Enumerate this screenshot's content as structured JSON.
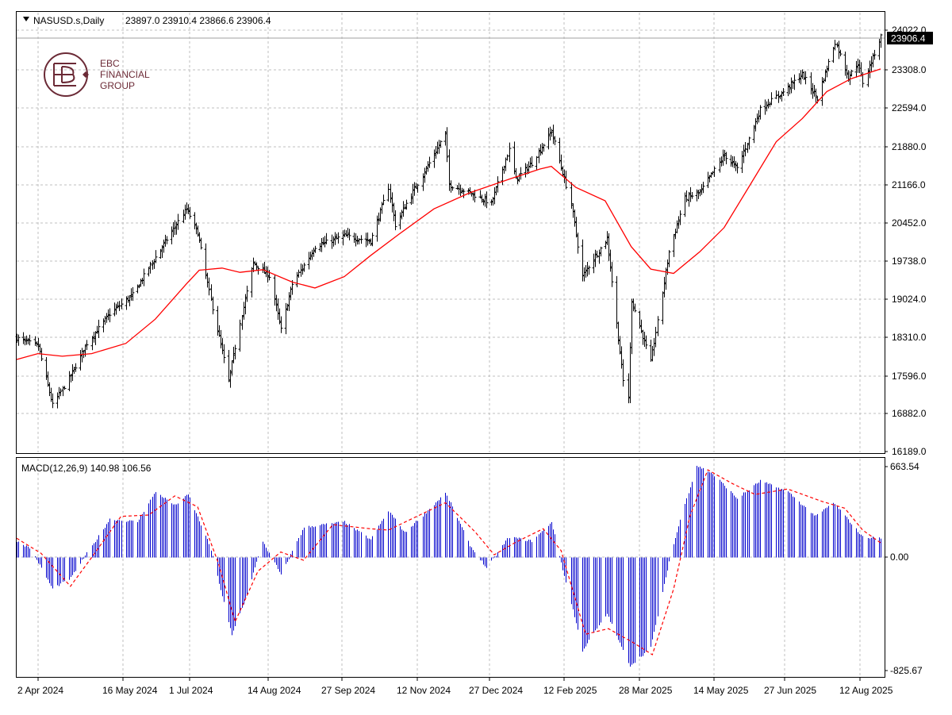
{
  "header": {
    "symbol_label": "NASUSD.s,Daily",
    "ohlc_text": "23897.0 23910.4 23866.6 23906.4",
    "macd_label": "MACD(12,26,9) 140.98 106.56"
  },
  "logo": {
    "line1": "EBC",
    "line2": "FINANCIAL",
    "line3": "GROUP",
    "color": "#6b2a36"
  },
  "price_tag": "23906.4",
  "colors": {
    "bars": "#000000",
    "ma": "#ff0000",
    "histogram": "#0000cc",
    "signal": "#ff0000",
    "grid": "#bfbfbf"
  },
  "chart_data": [
    {
      "type": "ohlc",
      "title": "NASUSD.s,Daily",
      "y_tick_labels": [
        "24022.0",
        "23308.0",
        "22594.0",
        "21880.0",
        "21166.0",
        "20452.0",
        "19738.0",
        "19024.0",
        "18310.0",
        "17596.0",
        "16882.0",
        "16189.0"
      ],
      "ylim": [
        16189,
        24022
      ],
      "x_tick_labels": [
        "2 Apr 2024",
        "16 May 2024",
        "1 Jul 2024",
        "14 Aug 2024",
        "27 Sep 2024",
        "12 Nov 2024",
        "27 Dec 2024",
        "12 Feb 2025",
        "28 Mar 2025",
        "14 May 2025",
        "27 Jun 2025",
        "12 Aug 2025"
      ],
      "grid": true,
      "last_price": 23906.4,
      "close_path": [
        {
          "date": "2024-03-28",
          "close": 18300
        },
        {
          "date": "2024-04-10",
          "close": 18150
        },
        {
          "date": "2024-04-19",
          "close": 17050
        },
        {
          "date": "2024-04-30",
          "close": 17600
        },
        {
          "date": "2024-05-10",
          "close": 18200
        },
        {
          "date": "2024-05-24",
          "close": 18750
        },
        {
          "date": "2024-06-07",
          "close": 19100
        },
        {
          "date": "2024-06-21",
          "close": 19800
        },
        {
          "date": "2024-07-10",
          "close": 20700
        },
        {
          "date": "2024-07-17",
          "close": 20250
        },
        {
          "date": "2024-07-25",
          "close": 19000
        },
        {
          "date": "2024-08-05",
          "close": 17500
        },
        {
          "date": "2024-08-12",
          "close": 18600
        },
        {
          "date": "2024-08-20",
          "close": 19700
        },
        {
          "date": "2024-08-30",
          "close": 19450
        },
        {
          "date": "2024-09-06",
          "close": 18450
        },
        {
          "date": "2024-09-13",
          "close": 19300
        },
        {
          "date": "2024-09-27",
          "close": 20000
        },
        {
          "date": "2024-10-15",
          "close": 20200
        },
        {
          "date": "2024-10-31",
          "close": 20100
        },
        {
          "date": "2024-11-11",
          "close": 21100
        },
        {
          "date": "2024-11-15",
          "close": 20400
        },
        {
          "date": "2024-11-22",
          "close": 20800
        },
        {
          "date": "2024-12-06",
          "close": 21550
        },
        {
          "date": "2024-12-16",
          "close": 22100
        },
        {
          "date": "2024-12-18",
          "close": 21150
        },
        {
          "date": "2024-12-31",
          "close": 21000
        },
        {
          "date": "2025-01-13",
          "close": 20800
        },
        {
          "date": "2025-01-24",
          "close": 21800
        },
        {
          "date": "2025-01-28",
          "close": 21250
        },
        {
          "date": "2025-02-07",
          "close": 21550
        },
        {
          "date": "2025-02-19",
          "close": 22150
        },
        {
          "date": "2025-03-03",
          "close": 20800
        },
        {
          "date": "2025-03-10",
          "close": 19450
        },
        {
          "date": "2025-03-25",
          "close": 20150
        },
        {
          "date": "2025-04-04",
          "close": 17500
        },
        {
          "date": "2025-04-07",
          "close": 17200
        },
        {
          "date": "2025-04-09",
          "close": 19000
        },
        {
          "date": "2025-04-21",
          "close": 17850
        },
        {
          "date": "2025-05-02",
          "close": 19900
        },
        {
          "date": "2025-05-12",
          "close": 20900
        },
        {
          "date": "2025-05-21",
          "close": 21000
        },
        {
          "date": "2025-06-05",
          "close": 21700
        },
        {
          "date": "2025-06-13",
          "close": 21450
        },
        {
          "date": "2025-06-27",
          "close": 22550
        },
        {
          "date": "2025-07-10",
          "close": 22850
        },
        {
          "date": "2025-07-23",
          "close": 23200
        },
        {
          "date": "2025-08-01",
          "close": 22750
        },
        {
          "date": "2025-08-12",
          "close": 23800
        },
        {
          "date": "2025-08-20",
          "close": 23150
        },
        {
          "date": "2025-08-26",
          "close": 23400
        },
        {
          "date": "2025-08-29",
          "close": 23050
        },
        {
          "date": "2025-09-09",
          "close": 23906
        }
      ],
      "series": [
        {
          "name": "",
          "kind": "moving-average",
          "values": [
            {
              "date": "2024-03-28",
              "value": 17900
            },
            {
              "date": "2024-04-10",
              "value": 18010
            },
            {
              "date": "2024-04-25",
              "value": 17960
            },
            {
              "date": "2024-05-13",
              "value": 18010
            },
            {
              "date": "2024-06-03",
              "value": 18200
            },
            {
              "date": "2024-06-21",
              "value": 18650
            },
            {
              "date": "2024-07-10",
              "value": 19300
            },
            {
              "date": "2024-07-18",
              "value": 19560
            },
            {
              "date": "2024-08-01",
              "value": 19600
            },
            {
              "date": "2024-08-12",
              "value": 19520
            },
            {
              "date": "2024-08-26",
              "value": 19570
            },
            {
              "date": "2024-09-13",
              "value": 19340
            },
            {
              "date": "2024-09-27",
              "value": 19230
            },
            {
              "date": "2024-10-15",
              "value": 19440
            },
            {
              "date": "2024-10-31",
              "value": 19830
            },
            {
              "date": "2024-11-18",
              "value": 20240
            },
            {
              "date": "2024-12-09",
              "value": 20700
            },
            {
              "date": "2024-12-31",
              "value": 21000
            },
            {
              "date": "2025-01-24",
              "value": 21250
            },
            {
              "date": "2025-02-12",
              "value": 21440
            },
            {
              "date": "2025-02-19",
              "value": 21490
            },
            {
              "date": "2025-03-06",
              "value": 21100
            },
            {
              "date": "2025-03-24",
              "value": 20850
            },
            {
              "date": "2025-04-09",
              "value": 20000
            },
            {
              "date": "2025-04-21",
              "value": 19580
            },
            {
              "date": "2025-05-05",
              "value": 19500
            },
            {
              "date": "2025-05-21",
              "value": 19900
            },
            {
              "date": "2025-06-05",
              "value": 20350
            },
            {
              "date": "2025-06-20",
              "value": 21100
            },
            {
              "date": "2025-07-07",
              "value": 21950
            },
            {
              "date": "2025-07-23",
              "value": 22380
            },
            {
              "date": "2025-08-07",
              "value": 22880
            },
            {
              "date": "2025-08-22",
              "value": 23120
            },
            {
              "date": "2025-09-09",
              "value": 23300
            }
          ]
        }
      ]
    },
    {
      "type": "bar",
      "title": "MACD(12,26,9) 140.98 106.56",
      "y_tick_labels": [
        "663.54",
        "0.00",
        "-825.67"
      ],
      "ylim": [
        -825.67,
        663.54
      ],
      "grid": true,
      "last_values": {
        "macd": 140.98,
        "signal": 106.56
      },
      "series": [
        {
          "name": "",
          "kind": "histogram",
          "values": [
            {
              "date": "2024-03-28",
              "value": 120
            },
            {
              "date": "2024-04-05",
              "value": 70
            },
            {
              "date": "2024-04-19",
              "value": -230
            },
            {
              "date": "2024-04-30",
              "value": -150
            },
            {
              "date": "2024-05-10",
              "value": 30
            },
            {
              "date": "2024-05-24",
              "value": 280
            },
            {
              "date": "2024-06-10",
              "value": 260
            },
            {
              "date": "2024-06-21",
              "value": 480
            },
            {
              "date": "2024-07-03",
              "value": 380
            },
            {
              "date": "2024-07-11",
              "value": 460
            },
            {
              "date": "2024-07-24",
              "value": 100
            },
            {
              "date": "2024-08-07",
              "value": -570
            },
            {
              "date": "2024-08-16",
              "value": -270
            },
            {
              "date": "2024-08-26",
              "value": 120
            },
            {
              "date": "2024-09-06",
              "value": -130
            },
            {
              "date": "2024-09-20",
              "value": 220
            },
            {
              "date": "2024-10-15",
              "value": 260
            },
            {
              "date": "2024-10-31",
              "value": 130
            },
            {
              "date": "2024-11-11",
              "value": 340
            },
            {
              "date": "2024-11-21",
              "value": 180
            },
            {
              "date": "2024-12-16",
              "value": 470
            },
            {
              "date": "2024-12-31",
              "value": 90
            },
            {
              "date": "2025-01-10",
              "value": -80
            },
            {
              "date": "2025-01-24",
              "value": 150
            },
            {
              "date": "2025-02-07",
              "value": 120
            },
            {
              "date": "2025-02-19",
              "value": 260
            },
            {
              "date": "2025-03-10",
              "value": -680
            },
            {
              "date": "2025-03-25",
              "value": -410
            },
            {
              "date": "2025-04-08",
              "value": -790
            },
            {
              "date": "2025-04-21",
              "value": -660
            },
            {
              "date": "2025-05-02",
              "value": -30
            },
            {
              "date": "2025-05-12",
              "value": 400
            },
            {
              "date": "2025-05-19",
              "value": 670
            },
            {
              "date": "2025-05-28",
              "value": 620
            },
            {
              "date": "2025-06-13",
              "value": 430
            },
            {
              "date": "2025-06-27",
              "value": 560
            },
            {
              "date": "2025-07-14",
              "value": 480
            },
            {
              "date": "2025-07-31",
              "value": 300
            },
            {
              "date": "2025-08-11",
              "value": 400
            },
            {
              "date": "2025-08-29",
              "value": 150
            },
            {
              "date": "2025-09-09",
              "value": 141
            }
          ]
        },
        {
          "name": "",
          "kind": "signal-line",
          "values": [
            {
              "date": "2024-03-28",
              "value": 140
            },
            {
              "date": "2024-04-12",
              "value": 30
            },
            {
              "date": "2024-04-30",
              "value": -210
            },
            {
              "date": "2024-05-13",
              "value": 0
            },
            {
              "date": "2024-05-31",
              "value": 300
            },
            {
              "date": "2024-06-17",
              "value": 310
            },
            {
              "date": "2024-07-03",
              "value": 450
            },
            {
              "date": "2024-07-17",
              "value": 370
            },
            {
              "date": "2024-07-30",
              "value": -50
            },
            {
              "date": "2024-08-09",
              "value": -470
            },
            {
              "date": "2024-08-23",
              "value": -100
            },
            {
              "date": "2024-09-06",
              "value": 40
            },
            {
              "date": "2024-09-20",
              "value": -20
            },
            {
              "date": "2024-10-08",
              "value": 240
            },
            {
              "date": "2024-10-31",
              "value": 210
            },
            {
              "date": "2024-11-11",
              "value": 200
            },
            {
              "date": "2024-11-25",
              "value": 280
            },
            {
              "date": "2024-12-16",
              "value": 400
            },
            {
              "date": "2025-01-03",
              "value": 190
            },
            {
              "date": "2025-01-15",
              "value": 20
            },
            {
              "date": "2025-01-28",
              "value": 110
            },
            {
              "date": "2025-02-14",
              "value": 210
            },
            {
              "date": "2025-02-25",
              "value": 50
            },
            {
              "date": "2025-03-12",
              "value": -560
            },
            {
              "date": "2025-03-26",
              "value": -520
            },
            {
              "date": "2025-04-10",
              "value": -620
            },
            {
              "date": "2025-04-22",
              "value": -710
            },
            {
              "date": "2025-05-05",
              "value": -230
            },
            {
              "date": "2025-05-15",
              "value": 300
            },
            {
              "date": "2025-05-26",
              "value": 640
            },
            {
              "date": "2025-06-10",
              "value": 540
            },
            {
              "date": "2025-06-24",
              "value": 460
            },
            {
              "date": "2025-07-14",
              "value": 500
            },
            {
              "date": "2025-08-04",
              "value": 410
            },
            {
              "date": "2025-08-18",
              "value": 360
            },
            {
              "date": "2025-08-29",
              "value": 200
            },
            {
              "date": "2025-09-09",
              "value": 107
            }
          ]
        }
      ]
    }
  ]
}
